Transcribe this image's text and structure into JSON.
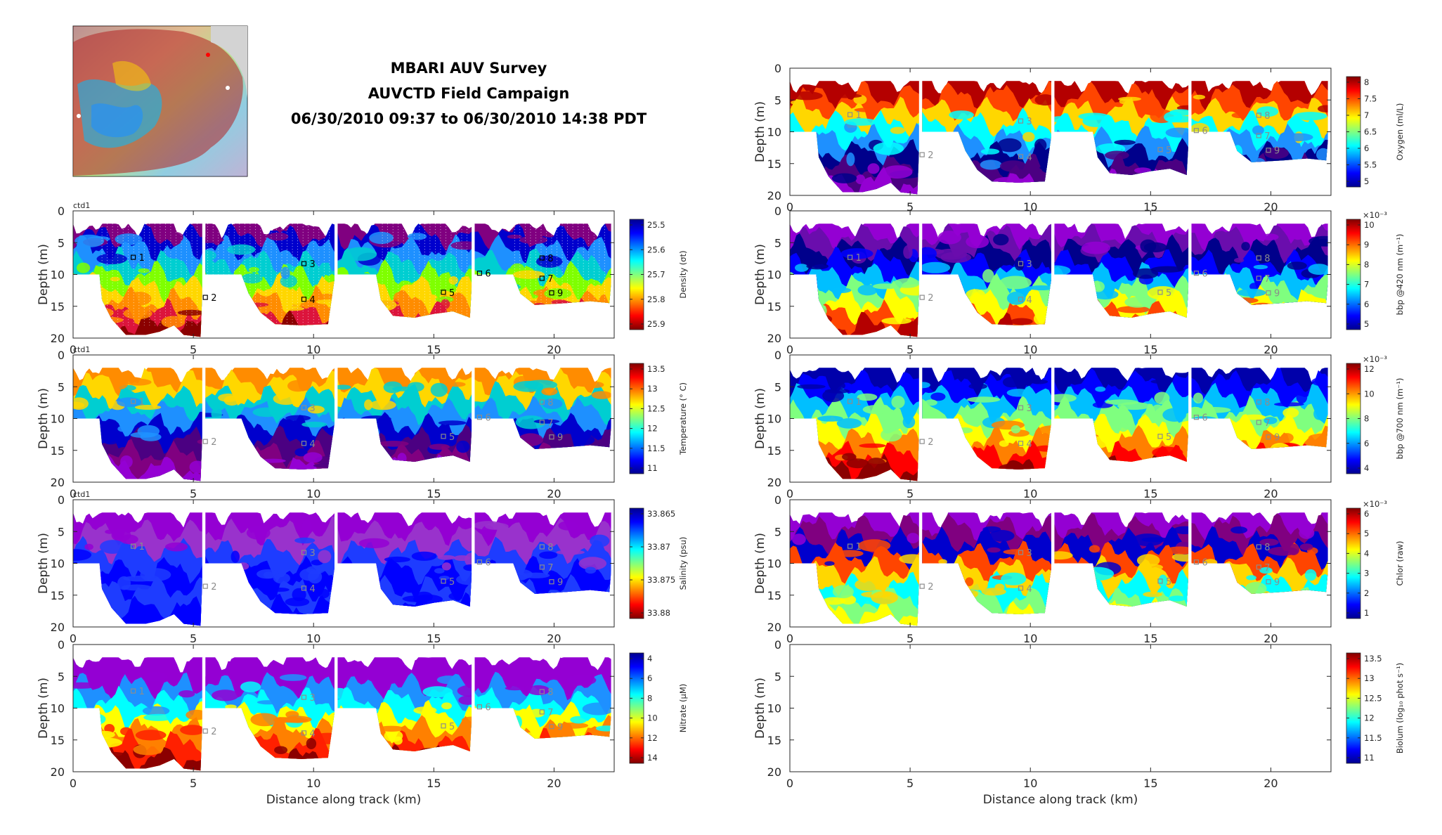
{
  "title_lines": [
    "MBARI AUV Survey",
    "AUVCTD Field Campaign",
    "06/30/2010 09:37 to 06/30/2010 14:38 PDT"
  ],
  "colors": {
    "jet": [
      "#00008f",
      "#0000ff",
      "#0080ff",
      "#00ffff",
      "#80ff80",
      "#ffff00",
      "#ff8000",
      "#ff0000",
      "#800000"
    ],
    "parula_like": [
      "#800080",
      "#9400d3",
      "#0000cd",
      "#1e90ff",
      "#00ced1",
      "#7fff00",
      "#ffd700",
      "#ff4500",
      "#cc0000"
    ],
    "frame": "#262626",
    "marker_black": "#000000",
    "marker_gray": "#8c8c8c"
  },
  "chart_data": [
    {
      "type": "heatmap",
      "id": "density",
      "subtitle": "ctd1",
      "xlabel": "",
      "ylabel": "Depth (m)",
      "xlim": [
        0,
        22.5
      ],
      "ylim": [
        20,
        0
      ],
      "xticks": [
        "0",
        "5",
        "10",
        "15",
        "20"
      ],
      "yticks": [
        "0",
        "5",
        "10",
        "15",
        "20"
      ],
      "colorbar": {
        "label": "Density (σt)",
        "ticks": [
          "25.5",
          "25.6",
          "25.7",
          "25.8",
          "25.9"
        ],
        "reversed": true,
        "multiplier": ""
      },
      "markers": [
        "1",
        "2",
        "3",
        "4",
        "5",
        "6",
        "8",
        "7",
        "9"
      ],
      "marker_style": "black"
    },
    {
      "type": "heatmap",
      "id": "temperature",
      "subtitle": "ctd1",
      "xlabel": "",
      "ylabel": "Depth (m)",
      "xlim": [
        0,
        22.5
      ],
      "ylim": [
        20,
        0
      ],
      "xticks": [
        "0",
        "5",
        "10",
        "15",
        "20"
      ],
      "yticks": [
        "0",
        "5",
        "10",
        "15",
        "20"
      ],
      "colorbar": {
        "label": "Temperature (° C)",
        "ticks": [
          "13.5",
          "13",
          "12.5",
          "12",
          "11.5",
          "11"
        ],
        "reversed": false,
        "multiplier": ""
      },
      "markers": [
        "1",
        "2",
        "3",
        "4",
        "5",
        "6",
        "8",
        "7",
        "9"
      ],
      "marker_style": "gray"
    },
    {
      "type": "heatmap",
      "id": "salinity",
      "subtitle": "ctd1",
      "xlabel": "",
      "ylabel": "Depth (m)",
      "xlim": [
        0,
        22.5
      ],
      "ylim": [
        20,
        0
      ],
      "xticks": [
        "0",
        "5",
        "10",
        "15",
        "20"
      ],
      "yticks": [
        "0",
        "5",
        "10",
        "15",
        "20"
      ],
      "colorbar": {
        "label": "Salinity (psu)",
        "ticks": [
          "33.865",
          "33.87",
          "33.875",
          "33.88"
        ],
        "reversed": true,
        "multiplier": ""
      },
      "markers": [
        "1",
        "2",
        "3",
        "4",
        "5",
        "6",
        "8",
        "7",
        "9"
      ],
      "marker_style": "gray"
    },
    {
      "type": "heatmap",
      "id": "nitrate",
      "subtitle": "",
      "xlabel": "Distance along track (km)",
      "ylabel": "Depth (m)",
      "xlim": [
        0,
        22.5
      ],
      "ylim": [
        20,
        0
      ],
      "xticks": [
        "0",
        "5",
        "10",
        "15",
        "20"
      ],
      "yticks": [
        "0",
        "5",
        "10",
        "15",
        "20"
      ],
      "colorbar": {
        "label": "Nitrate (μM)",
        "ticks": [
          "4",
          "6",
          "8",
          "10",
          "12",
          "14"
        ],
        "reversed": true,
        "multiplier": ""
      },
      "markers": [
        "1",
        "2",
        "3",
        "4",
        "5",
        "6",
        "8",
        "7",
        "9"
      ],
      "marker_style": "gray"
    },
    {
      "type": "heatmap",
      "id": "oxygen",
      "subtitle": "",
      "xlabel": "",
      "ylabel": "Depth (m)",
      "xlim": [
        0,
        22.5
      ],
      "ylim": [
        20,
        0
      ],
      "xticks": [
        "0",
        "5",
        "10",
        "15",
        "20"
      ],
      "yticks": [
        "0",
        "5",
        "10",
        "15",
        "20"
      ],
      "colorbar": {
        "label": "Oxygen (ml/L)",
        "ticks": [
          "8",
          "7.5",
          "7",
          "6.5",
          "6",
          "5.5",
          "5"
        ],
        "reversed": false,
        "multiplier": ""
      },
      "markers": [
        "1",
        "2",
        "3",
        "4",
        "5",
        "6",
        "8",
        "7",
        "9"
      ],
      "marker_style": "gray"
    },
    {
      "type": "heatmap",
      "id": "bbp420",
      "subtitle": "",
      "xlabel": "",
      "ylabel": "Depth (m)",
      "xlim": [
        0,
        22.5
      ],
      "ylim": [
        20,
        0
      ],
      "xticks": [
        "0",
        "5",
        "10",
        "15",
        "20"
      ],
      "yticks": [
        "0",
        "5",
        "10",
        "15",
        "20"
      ],
      "colorbar": {
        "label": "bbp @420 nm (m⁻¹)",
        "ticks": [
          "10",
          "9",
          "8",
          "7",
          "6",
          "5"
        ],
        "reversed": false,
        "multiplier": "×10⁻³"
      },
      "markers": [
        "1",
        "2",
        "3",
        "4",
        "5",
        "6",
        "8",
        "7",
        "9"
      ],
      "marker_style": "gray"
    },
    {
      "type": "heatmap",
      "id": "bbp700",
      "subtitle": "",
      "xlabel": "",
      "ylabel": "Depth (m)",
      "xlim": [
        0,
        22.5
      ],
      "ylim": [
        20,
        0
      ],
      "xticks": [
        "0",
        "5",
        "10",
        "15",
        "20"
      ],
      "yticks": [
        "0",
        "5",
        "10",
        "15",
        "20"
      ],
      "colorbar": {
        "label": "bbp @700 nm (m⁻¹)",
        "ticks": [
          "12",
          "10",
          "8",
          "6",
          "4"
        ],
        "reversed": false,
        "multiplier": "×10⁻³"
      },
      "markers": [
        "1",
        "2",
        "3",
        "4",
        "5",
        "6",
        "8",
        "7",
        "9"
      ],
      "marker_style": "gray"
    },
    {
      "type": "heatmap",
      "id": "chlor",
      "subtitle": "",
      "xlabel": "",
      "ylabel": "Depth (m)",
      "xlim": [
        0,
        22.5
      ],
      "ylim": [
        20,
        0
      ],
      "xticks": [
        "0",
        "5",
        "10",
        "15",
        "20"
      ],
      "yticks": [
        "0",
        "5",
        "10",
        "15",
        "20"
      ],
      "colorbar": {
        "label": "Chlor (raw)",
        "ticks": [
          "6",
          "5",
          "4",
          "3",
          "2",
          "1"
        ],
        "reversed": false,
        "multiplier": "×10⁻³"
      },
      "markers": [
        "1",
        "2",
        "3",
        "4",
        "5",
        "6",
        "8",
        "7",
        "9"
      ],
      "marker_style": "gray"
    },
    {
      "type": "heatmap",
      "id": "biolum",
      "subtitle": "",
      "xlabel": "Distance along track (km)",
      "ylabel": "Depth (m)",
      "xlim": [
        0,
        22.5
      ],
      "ylim": [
        20,
        0
      ],
      "xticks": [
        "0",
        "5",
        "10",
        "15",
        "20"
      ],
      "yticks": [
        "0",
        "5",
        "10",
        "15",
        "20"
      ],
      "colorbar": {
        "label": "Biolum (log₁₀ phot s⁻¹)",
        "ticks": [
          "13.5",
          "13",
          "12.5",
          "12",
          "11.5",
          "11"
        ],
        "reversed": false,
        "multiplier": ""
      },
      "markers": [],
      "marker_style": "none",
      "empty": true
    }
  ],
  "map_inset": {
    "legend": ""
  }
}
